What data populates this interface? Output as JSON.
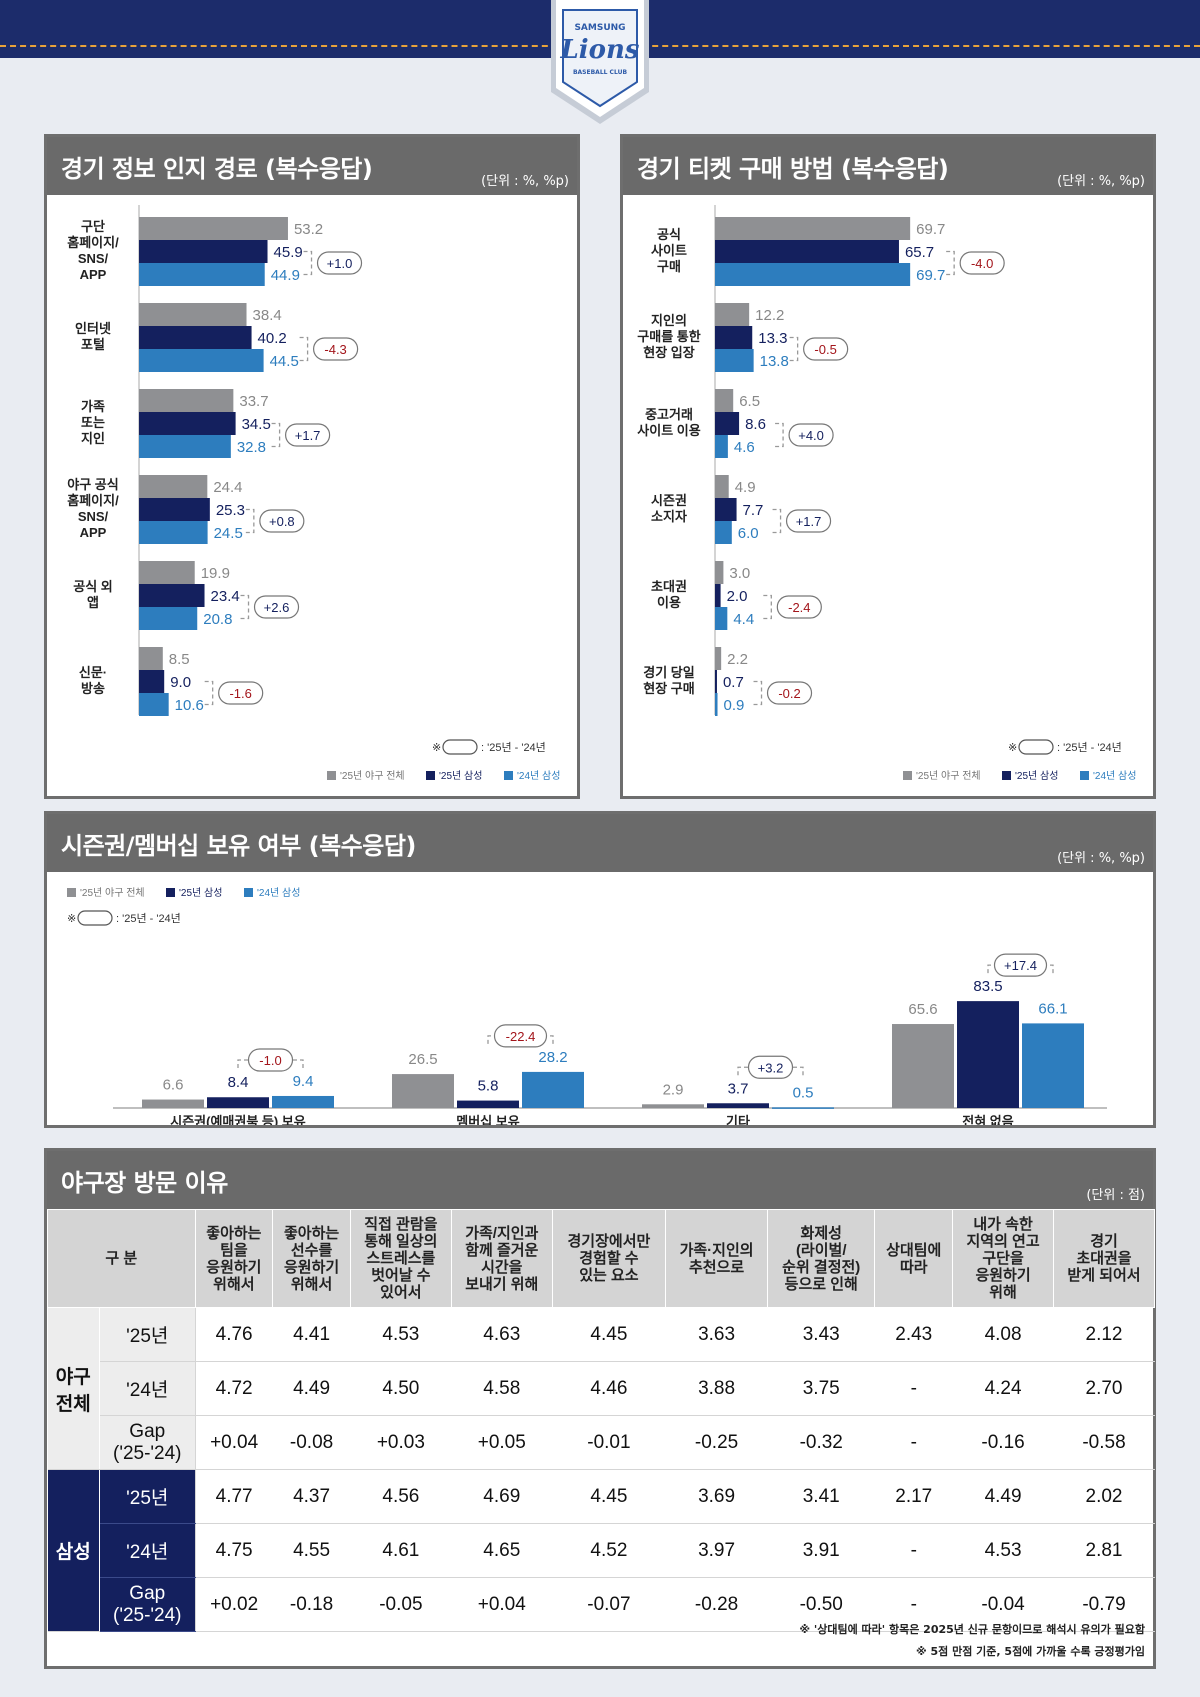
{
  "logo": {
    "top_text": "SAMSUNG",
    "name": "Lions",
    "bottom_text": "BASEBALL CLUB"
  },
  "colors": {
    "total": "#8f9093",
    "samsung25": "#14205e",
    "samsung24": "#2d7dbe",
    "pos": "#14205e",
    "neg": "#d9231c"
  },
  "panel1": {
    "title": "경기 정보 인지 경로 (복수응답)",
    "unit": "(단위 : %, %p)",
    "note": "※      : '25년 - '24년",
    "legend": [
      "'25년 야구 전체",
      "'25년 삼성",
      "'24년 삼성"
    ]
  },
  "panel2": {
    "title": "경기 티켓 구매 방법 (복수응답)",
    "unit": "(단위 : %, %p)",
    "note": "※      : '25년 - '24년",
    "legend": [
      "'25년 야구 전체",
      "'25년 삼성",
      "'24년 삼성"
    ]
  },
  "panel3": {
    "title": "시즌권/멤버십 보유 여부 (복수응답)",
    "unit": "(단위 : %, %p)",
    "note": "※      : '25년 - '24년",
    "legend": [
      "'25년 야구 전체",
      "'25년 삼성",
      "'24년 삼성"
    ]
  },
  "chart_data": [
    {
      "type": "bar",
      "orientation": "horizontal",
      "title": "경기 정보 인지 경로 (복수응답)",
      "categories": [
        [
          "구단",
          "홈페이지/",
          "SNS/",
          "APP"
        ],
        [
          "인터넷",
          "포털"
        ],
        [
          "가족",
          "또는",
          "지인"
        ],
        [
          "야구 공식",
          "홈페이지/",
          "SNS/",
          "APP"
        ],
        [
          "공식 외",
          "앱"
        ],
        [
          "신문·",
          "방송"
        ]
      ],
      "series": [
        {
          "name": "'25년 야구 전체",
          "values": [
            53.2,
            38.4,
            33.7,
            24.4,
            19.9,
            8.5
          ]
        },
        {
          "name": "'25년 삼성",
          "values": [
            45.9,
            40.2,
            34.5,
            25.3,
            23.4,
            9.0
          ]
        },
        {
          "name": "'24년 삼성",
          "values": [
            44.9,
            44.5,
            32.8,
            24.5,
            20.8,
            10.6
          ]
        }
      ],
      "diff": [
        "+1.0",
        "-4.3",
        "+1.7",
        "+0.8",
        "+2.6",
        "-1.6"
      ],
      "xlim": [
        0,
        100
      ],
      "legend": "bottom-right"
    },
    {
      "type": "bar",
      "orientation": "horizontal",
      "title": "경기 티켓 구매 방법 (복수응답)",
      "categories": [
        [
          "공식",
          "사이트",
          "구매"
        ],
        [
          "지인의",
          "구매를 통한",
          "현장 입장"
        ],
        [
          "중고거래",
          "사이트 이용"
        ],
        [
          "시즌권",
          "소지자"
        ],
        [
          "초대권",
          "이용"
        ],
        [
          "경기 당일",
          "현장 구매"
        ]
      ],
      "series": [
        {
          "name": "'25년 야구 전체",
          "values": [
            69.7,
            12.2,
            6.5,
            4.9,
            3.0,
            2.2
          ]
        },
        {
          "name": "'25년 삼성",
          "values": [
            65.7,
            13.3,
            8.6,
            7.7,
            2.0,
            0.7
          ]
        },
        {
          "name": "'24년 삼성",
          "values": [
            69.7,
            13.8,
            4.6,
            6.0,
            4.4,
            0.9
          ]
        }
      ],
      "diff": [
        "-4.0",
        "-0.5",
        "+4.0",
        "+1.7",
        "-2.4",
        "-0.2"
      ],
      "xlim": [
        0,
        100
      ],
      "legend": "bottom-right"
    },
    {
      "type": "bar",
      "orientation": "vertical",
      "title": "시즌권/멤버십 보유 여부 (복수응답)",
      "categories": [
        "시즌권(예매권북 등) 보유",
        "멤버십 보유",
        "기타",
        "전혀 없음"
      ],
      "series": [
        {
          "name": "'25년 야구 전체",
          "values": [
            6.6,
            26.5,
            2.9,
            65.6
          ]
        },
        {
          "name": "'25년 삼성",
          "values": [
            8.4,
            5.8,
            3.7,
            83.5
          ]
        },
        {
          "name": "'24년 삼성",
          "values": [
            9.4,
            28.2,
            0.5,
            66.1
          ]
        }
      ],
      "diff": [
        "-1.0",
        "-22.4",
        "+3.2",
        "+17.4"
      ],
      "ylim": [
        0,
        100
      ],
      "legend": "top-left"
    },
    {
      "type": "table",
      "title": "야구장 방문 이유",
      "unit": "(단위 : 점)",
      "header_group": "구 분",
      "columns": [
        [
          "좋아하는",
          "팀을",
          "응원하기",
          "위해서"
        ],
        [
          "좋아하는",
          "선수를",
          "응원하기",
          "위해서"
        ],
        [
          "직접 관람을",
          "통해 일상의",
          "스트레스를",
          "벗어날 수",
          "있어서"
        ],
        [
          "가족/지인과",
          "함께 즐거운",
          "시간을",
          "보내기 위해"
        ],
        [
          "경기장에서만",
          "경험할 수",
          "있는 요소"
        ],
        [
          "가족·지인의",
          "추천으로"
        ],
        [
          "화제성",
          "(라이벌/",
          "순위 결정전)",
          "등으로 인해"
        ],
        [
          "상대팀에",
          "따라"
        ],
        [
          "내가 속한",
          "지역의 연고",
          "구단을",
          "응원하기",
          "위해"
        ],
        [
          "경기",
          "초대권을",
          "받게 되어서"
        ]
      ],
      "groups": [
        {
          "name": [
            "야구",
            "전체"
          ],
          "rows": [
            {
              "label": [
                "'25년"
              ],
              "values": [
                "4.76",
                "4.41",
                "4.53",
                "4.63",
                "4.45",
                "3.63",
                "3.43",
                "2.43",
                "4.08",
                "2.12"
              ]
            },
            {
              "label": [
                "'24년"
              ],
              "values": [
                "4.72",
                "4.49",
                "4.50",
                "4.58",
                "4.46",
                "3.88",
                "3.75",
                "-",
                "4.24",
                "2.70"
              ]
            },
            {
              "label": [
                "Gap",
                "('25-'24)"
              ],
              "gap": true,
              "values": [
                "+0.04",
                "-0.08",
                "+0.03",
                "+0.05",
                "-0.01",
                "-0.25",
                "-0.32",
                "-",
                "-0.16",
                "-0.58"
              ]
            }
          ]
        },
        {
          "name": [
            "삼성"
          ],
          "dark": true,
          "rows": [
            {
              "label": [
                "'25년"
              ],
              "values": [
                "4.77",
                "4.37",
                "4.56",
                "4.69",
                "4.45",
                "3.69",
                "3.41",
                "2.17",
                "4.49",
                "2.02"
              ]
            },
            {
              "label": [
                "'24년"
              ],
              "values": [
                "4.75",
                "4.55",
                "4.61",
                "4.65",
                "4.52",
                "3.97",
                "3.91",
                "-",
                "4.53",
                "2.81"
              ]
            },
            {
              "label": [
                "Gap",
                "('25-'24)"
              ],
              "gap": true,
              "values": [
                "+0.02",
                "-0.18",
                "-0.05",
                "+0.04",
                "-0.07",
                "-0.28",
                "-0.50",
                "-",
                "-0.04",
                "-0.79"
              ]
            }
          ]
        }
      ],
      "notes": [
        "※ '상대팀에 따라' 항목은 2025년 신규 문항이므로 해석시 유의가 필요함",
        "※ 5점 만점 기준, 5점에 가까울 수록 긍정평가임"
      ]
    }
  ]
}
